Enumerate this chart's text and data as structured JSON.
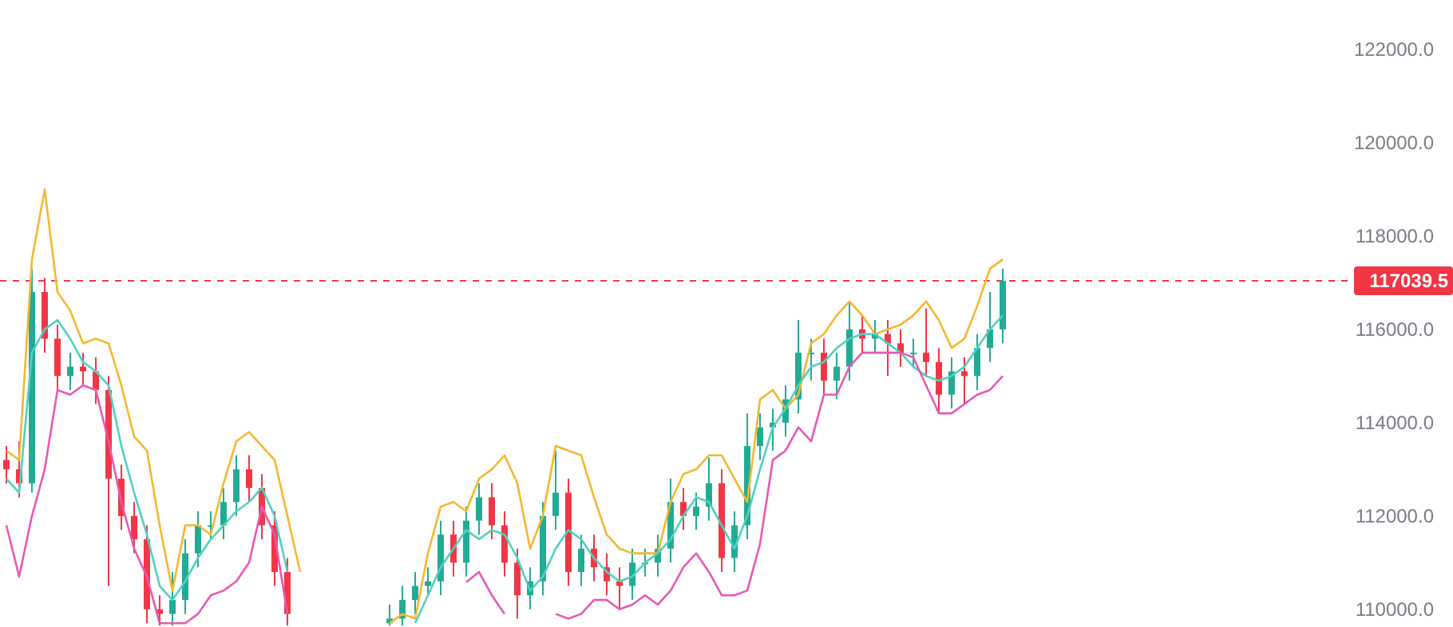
{
  "chart_data": {
    "type": "candlestick",
    "categories": [
      null,
      null,
      null,
      null,
      null,
      null,
      null,
      null,
      null,
      null,
      null,
      null,
      null,
      null,
      null,
      null,
      null,
      null,
      null,
      null,
      null,
      null,
      null,
      null,
      null,
      null,
      null,
      null,
      null,
      null,
      null,
      null,
      null,
      null,
      null,
      null,
      null,
      null,
      null,
      null,
      null,
      null,
      null,
      null,
      null,
      null,
      null,
      null,
      null,
      null,
      null,
      null,
      null,
      null,
      null,
      null,
      null,
      null,
      null,
      null,
      null,
      null,
      null,
      null,
      null,
      null,
      null,
      null,
      null,
      null,
      null,
      null,
      null,
      null,
      null,
      null,
      null,
      null,
      null,
      null,
      null,
      null,
      null,
      null,
      null,
      null,
      null,
      null,
      null,
      null,
      null,
      null,
      null,
      null,
      null,
      null,
      null,
      null,
      null,
      null,
      null,
      null,
      null,
      null,
      null
    ],
    "ylim": [
      109620,
      123060
    ],
    "yticks": [
      {
        "value": 110000,
        "label": "110000.0"
      },
      {
        "value": 112000,
        "label": "112000.0"
      },
      {
        "value": 114000,
        "label": "114000.0"
      },
      {
        "value": 116000,
        "label": "116000.0"
      },
      {
        "value": 118000,
        "label": "118000.0"
      },
      {
        "value": 120000,
        "label": "120000.0"
      },
      {
        "value": 122000,
        "label": "122000.0"
      }
    ],
    "tick_labels": "y",
    "ohlc": [
      [
        113200,
        113500,
        112700,
        113000
      ],
      [
        113000,
        113600,
        112400,
        112700
      ],
      [
        112700,
        117300,
        112500,
        116800
      ],
      [
        116800,
        117100,
        115500,
        115800
      ],
      [
        115800,
        116100,
        114700,
        115000
      ],
      [
        115000,
        115500,
        114700,
        115200
      ],
      [
        115200,
        115500,
        114800,
        115100
      ],
      [
        115100,
        115400,
        114400,
        114700
      ],
      [
        114700,
        115000,
        110500,
        112800
      ],
      [
        112800,
        113100,
        111700,
        112000
      ],
      [
        112000,
        112300,
        111200,
        111500
      ],
      [
        111500,
        111800,
        109700,
        110000
      ],
      [
        110000,
        110300,
        109650,
        109900
      ],
      [
        109900,
        110800,
        109650,
        110200
      ],
      [
        110200,
        111500,
        109900,
        111200
      ],
      [
        111200,
        112100,
        110900,
        111800
      ],
      [
        111800,
        112100,
        111500,
        111800
      ],
      [
        111800,
        112600,
        111500,
        112300
      ],
      [
        112300,
        113300,
        112000,
        113000
      ],
      [
        113000,
        113300,
        112300,
        112600
      ],
      [
        112600,
        112900,
        111500,
        111800
      ],
      [
        111800,
        112100,
        110500,
        110800
      ],
      [
        110800,
        111100,
        109650,
        109900
      ],
      null,
      null,
      null,
      null,
      null,
      null,
      null,
      [
        109700,
        110100,
        109650,
        109800
      ],
      [
        109800,
        110500,
        109650,
        110200
      ],
      [
        110200,
        110800,
        109900,
        110500
      ],
      [
        110500,
        110900,
        110300,
        110600
      ],
      [
        110600,
        111900,
        110300,
        111600
      ],
      [
        111600,
        111900,
        110700,
        111000
      ],
      [
        111000,
        112200,
        110700,
        111900
      ],
      [
        111900,
        112700,
        111600,
        112400
      ],
      [
        112400,
        112700,
        111500,
        111800
      ],
      [
        111800,
        112100,
        110700,
        111000
      ],
      [
        111000,
        111300,
        109800,
        110300
      ],
      [
        110300,
        110900,
        110000,
        110600
      ],
      [
        110600,
        112300,
        110300,
        112000
      ],
      [
        112000,
        113400,
        111700,
        112500
      ],
      [
        112500,
        112800,
        110500,
        110800
      ],
      [
        110800,
        111600,
        110500,
        111300
      ],
      [
        111300,
        111600,
        110600,
        110900
      ],
      [
        110900,
        111200,
        110300,
        110600
      ],
      [
        110600,
        110900,
        110000,
        110500
      ],
      [
        110500,
        111300,
        110200,
        111000
      ],
      [
        111000,
        111300,
        110700,
        111000
      ],
      [
        111000,
        111600,
        110700,
        111300
      ],
      [
        111300,
        112800,
        111000,
        112300
      ],
      [
        112300,
        112600,
        111700,
        112000
      ],
      [
        112000,
        112500,
        111700,
        112200
      ],
      [
        112200,
        113250,
        111900,
        112700
      ],
      [
        112700,
        113000,
        110800,
        111100
      ],
      [
        111100,
        112100,
        110800,
        111800
      ],
      [
        111800,
        114200,
        111500,
        113500
      ],
      [
        113500,
        114200,
        113200,
        113900
      ],
      [
        113900,
        114300,
        113400,
        114000
      ],
      [
        114000,
        114800,
        113700,
        114500
      ],
      [
        114500,
        116200,
        114200,
        115500
      ],
      [
        115500,
        115800,
        114900,
        115500
      ],
      [
        115500,
        115800,
        114600,
        114900
      ],
      [
        114900,
        115500,
        114500,
        115200
      ],
      [
        115200,
        116600,
        114900,
        116000
      ],
      [
        116000,
        116300,
        115500,
        115800
      ],
      [
        115800,
        116200,
        115500,
        115900
      ],
      [
        115900,
        116200,
        115000,
        115700
      ],
      [
        115700,
        116000,
        115200,
        115500
      ],
      [
        115500,
        115800,
        115200,
        115500
      ],
      [
        115500,
        116450,
        115000,
        115300
      ],
      [
        115300,
        115600,
        114200,
        114600
      ],
      [
        114600,
        115400,
        114300,
        115100
      ],
      [
        115100,
        115400,
        114400,
        115000
      ],
      [
        115000,
        115900,
        114700,
        115600
      ],
      [
        115600,
        116800,
        115300,
        116000
      ],
      [
        116000,
        117300,
        115700,
        117040
      ],
      null,
      null,
      null,
      null,
      null,
      null,
      null,
      null,
      null,
      null,
      null,
      null,
      null,
      null,
      null,
      null,
      null,
      null,
      null,
      null,
      null,
      null,
      null,
      null,
      null,
      null
    ],
    "colors": [
      "#f23645",
      "#f23645",
      "#22ab94",
      "#f23645",
      "#f23645",
      "#22ab94",
      "#f23645",
      "#f23645",
      "#f23645",
      "#f23645",
      "#f23645",
      "#f23645",
      "#f23645",
      "#22ab94",
      "#22ab94",
      "#22ab94",
      "#22ab94",
      "#22ab94",
      "#22ab94",
      "#f23645",
      "#f23645",
      "#f23645",
      "#f23645",
      null,
      null,
      null,
      null,
      null,
      null,
      null,
      "#22ab94",
      "#22ab94",
      "#22ab94",
      "#22ab94",
      "#22ab94",
      "#f23645",
      "#22ab94",
      "#22ab94",
      "#f23645",
      "#f23645",
      "#f23645",
      "#22ab94",
      "#22ab94",
      "#22ab94",
      "#f23645",
      "#22ab94",
      "#f23645",
      "#f23645",
      "#f23645",
      "#22ab94",
      "#22ab94",
      "#22ab94",
      "#22ab94",
      "#f23645",
      "#22ab94",
      "#22ab94",
      "#f23645",
      "#22ab94",
      "#22ab94",
      "#22ab94",
      "#22ab94",
      "#22ab94",
      "#22ab94",
      "#22ab94",
      "#f23645",
      "#22ab94",
      "#22ab94",
      "#f23645",
      "#22ab94",
      "#f23645",
      "#f23645",
      "#22ab94",
      "#f23645",
      "#f23645",
      "#22ab94",
      "#f23645",
      "#22ab94",
      "#22ab94",
      "#22ab94",
      null,
      null,
      null,
      null,
      null,
      null,
      null,
      null,
      null,
      null,
      null,
      null,
      null,
      null,
      null,
      null,
      null,
      null,
      null,
      null,
      null,
      null,
      null,
      null,
      null,
      null
    ],
    "series": [
      {
        "type": "line",
        "color": "#f5b731",
        "values": [
          113400,
          113200,
          117500,
          119000,
          116800,
          116400,
          115700,
          115800,
          115700,
          114800,
          113700,
          113400,
          111800,
          110400,
          111800,
          111800,
          111600,
          112700,
          113600,
          113800,
          113500,
          113200,
          112000,
          110800,
          null,
          null,
          null,
          null,
          null,
          null,
          109700,
          109900,
          109800,
          111200,
          112200,
          112300,
          112100,
          112800,
          113000,
          113300,
          112700,
          111300,
          112000,
          113500,
          113400,
          113300,
          112400,
          111600,
          111300,
          111200,
          111200,
          111200,
          112300,
          112900,
          113000,
          113300,
          113300,
          112800,
          112300,
          114500,
          114700,
          114300,
          114600,
          115700,
          115900,
          116300,
          116600,
          116300,
          115900,
          116000,
          116100,
          116300,
          116600,
          116200,
          115600,
          115800,
          116500,
          117300,
          117500,
          null,
          null,
          null,
          null,
          null,
          null,
          null,
          null,
          null,
          null,
          null,
          null,
          null,
          null,
          null,
          null,
          null,
          null,
          null,
          null,
          null,
          null,
          null,
          null,
          null,
          null
        ]
      },
      {
        "type": "line",
        "color": "#4fd1c0",
        "values": [
          112800,
          112500,
          115500,
          116000,
          116200,
          115800,
          115300,
          115100,
          114800,
          113500,
          112500,
          111600,
          110500,
          110200,
          110600,
          111100,
          111500,
          111800,
          112100,
          112300,
          112600,
          112000,
          110800,
          null,
          null,
          null,
          null,
          null,
          null,
          null,
          null,
          null,
          109700,
          110300,
          110900,
          111300,
          111700,
          111500,
          111700,
          111600,
          111100,
          110400,
          110700,
          111300,
          111700,
          111500,
          111100,
          110800,
          110600,
          110700,
          111000,
          111200,
          111500,
          112000,
          112400,
          112300,
          111800,
          111300,
          112000,
          113000,
          113900,
          114300,
          114800,
          115200,
          115300,
          115600,
          115800,
          115900,
          115900,
          115700,
          115500,
          115200,
          115000,
          114900,
          115000,
          115200,
          115600,
          116000,
          116300,
          null,
          null,
          null,
          null,
          null,
          null,
          null,
          null,
          null,
          null,
          null,
          null,
          null,
          null,
          null,
          null,
          null,
          null,
          null,
          null,
          null,
          null,
          null,
          null,
          null,
          null
        ]
      },
      {
        "type": "line",
        "color": "#e659b5",
        "values": [
          111800,
          110700,
          112000,
          113000,
          114700,
          114600,
          114800,
          114700,
          113600,
          112300,
          111300,
          110700,
          109700,
          109700,
          109700,
          109900,
          110300,
          110400,
          110600,
          111000,
          112200,
          111600,
          109900,
          null,
          null,
          null,
          null,
          null,
          null,
          null,
          null,
          null,
          null,
          null,
          null,
          null,
          110580,
          110800,
          110300,
          109900,
          null,
          null,
          null,
          109900,
          109800,
          109900,
          110200,
          110200,
          110000,
          110100,
          110300,
          110100,
          110400,
          110900,
          111200,
          110800,
          110300,
          110300,
          110400,
          111400,
          113200,
          113400,
          113900,
          113600,
          114600,
          114600,
          115200,
          115500,
          115500,
          115500,
          115500,
          115400,
          114800,
          114200,
          114200,
          114400,
          114600,
          114700,
          115000,
          null,
          null,
          null,
          null,
          null,
          null,
          null,
          null,
          null,
          null,
          null,
          null,
          null,
          null,
          null,
          null,
          null,
          null,
          null,
          null,
          null,
          null,
          null,
          null,
          null,
          null
        ]
      }
    ],
    "ref_lines": [
      {
        "axis": "y",
        "value": 117039.5,
        "label": "117039.5",
        "color": "#f23645",
        "line_style": "dashed"
      }
    ]
  }
}
